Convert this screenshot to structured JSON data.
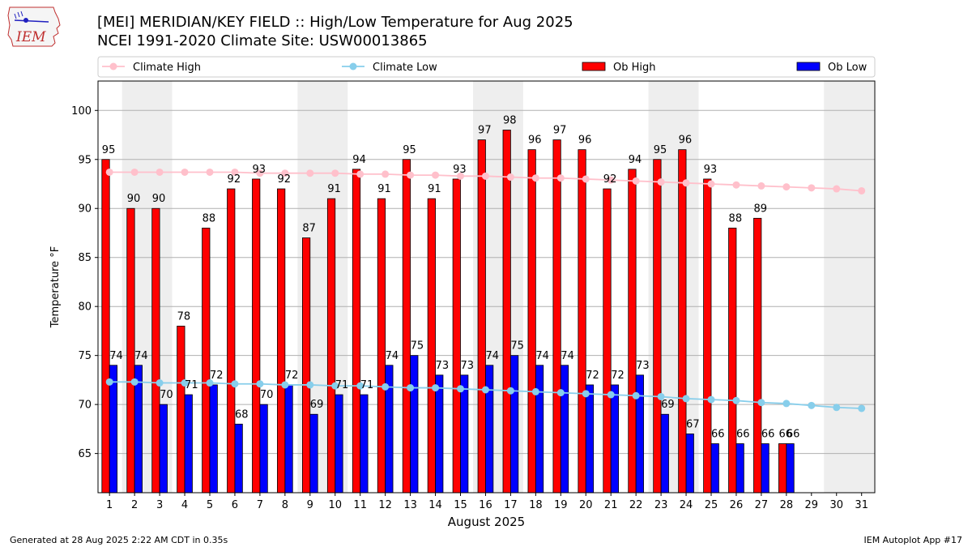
{
  "header": {
    "title": "[MEI] MERIDIAN/KEY FIELD :: High/Low Temperature for Aug 2025",
    "subtitle": "NCEI 1991-2020 Climate Site: USW00013865",
    "logo_text": "IEM"
  },
  "footer": {
    "left": "Generated at 28 Aug 2025 2:22 AM CDT in 0.35s",
    "right": "IEM Autoplot App #17"
  },
  "colors": {
    "ob_high": "#ff0000",
    "ob_low": "#0000ff",
    "climate_high": "#ffc0cb",
    "climate_low": "#87ceeb",
    "weekend_band": "#eeeeee",
    "grid": "#b0b0b0"
  },
  "chart_data": {
    "type": "bar",
    "xlabel": "August 2025",
    "ylabel": "Temperature °F",
    "ylim": [
      61,
      103
    ],
    "yticks": [
      65,
      70,
      75,
      80,
      85,
      90,
      95,
      100
    ],
    "grid": "y",
    "legend_placement": "top",
    "weekend_days": [
      2,
      3,
      9,
      10,
      16,
      17,
      23,
      24,
      30,
      31
    ],
    "categories": [
      "1",
      "2",
      "3",
      "4",
      "5",
      "6",
      "7",
      "8",
      "9",
      "10",
      "11",
      "12",
      "13",
      "14",
      "15",
      "16",
      "17",
      "18",
      "19",
      "20",
      "21",
      "22",
      "23",
      "24",
      "25",
      "26",
      "27",
      "28",
      "29",
      "30",
      "31"
    ],
    "series": [
      {
        "name": "Climate High",
        "kind": "line",
        "values": [
          93.7,
          93.7,
          93.7,
          93.7,
          93.7,
          93.7,
          93.6,
          93.6,
          93.6,
          93.6,
          93.5,
          93.5,
          93.4,
          93.4,
          93.3,
          93.3,
          93.2,
          93.1,
          93.1,
          93.0,
          92.9,
          92.8,
          92.7,
          92.6,
          92.5,
          92.4,
          92.3,
          92.2,
          92.1,
          92.0,
          91.8
        ]
      },
      {
        "name": "Climate Low",
        "kind": "line",
        "values": [
          72.3,
          72.3,
          72.2,
          72.2,
          72.2,
          72.1,
          72.1,
          72.0,
          72.0,
          71.9,
          71.9,
          71.8,
          71.7,
          71.7,
          71.6,
          71.5,
          71.4,
          71.3,
          71.2,
          71.1,
          71.0,
          70.9,
          70.8,
          70.6,
          70.5,
          70.4,
          70.2,
          70.1,
          69.9,
          69.7,
          69.6
        ]
      },
      {
        "name": "Ob High",
        "kind": "bar",
        "values": [
          95,
          90,
          90,
          78,
          88,
          92,
          93,
          92,
          87,
          91,
          94,
          91,
          95,
          91,
          93,
          97,
          98,
          96,
          97,
          96,
          92,
          94,
          95,
          96,
          93,
          88,
          89,
          66,
          null,
          null,
          null
        ]
      },
      {
        "name": "Ob Low",
        "kind": "bar",
        "values": [
          74,
          74,
          70,
          71,
          72,
          68,
          70,
          72,
          69,
          71,
          71,
          74,
          75,
          73,
          73,
          74,
          75,
          74,
          74,
          72,
          72,
          73,
          69,
          67,
          66,
          66,
          66,
          66,
          null,
          null,
          null
        ]
      }
    ]
  }
}
